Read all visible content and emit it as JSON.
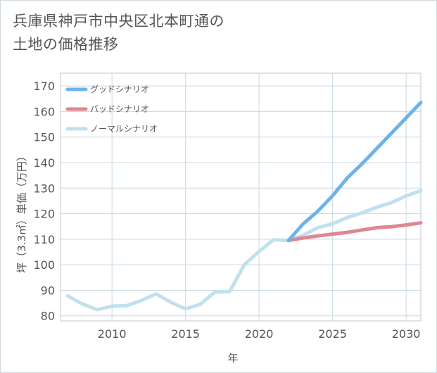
{
  "title": {
    "line1": "兵庫県神戸市中央区北本町通の",
    "line2": "土地の価格推移"
  },
  "chart_data": {
    "type": "line",
    "xlabel": "年",
    "ylabel": "坪（3.3㎡）単価（万円）",
    "xlim": [
      2006.5,
      2031
    ],
    "ylim": [
      78,
      175
    ],
    "x_ticks": [
      2010,
      2015,
      2020,
      2025,
      2030
    ],
    "y_ticks": [
      80,
      90,
      100,
      110,
      120,
      130,
      140,
      150,
      160,
      170
    ],
    "grid": true,
    "legend_position": "top-left",
    "series": [
      {
        "name": "グッドシナリオ",
        "color": "#6cb4e8",
        "width": 5,
        "x": [
          2022,
          2023,
          2024,
          2025,
          2026,
          2027,
          2028,
          2029,
          2030,
          2031
        ],
        "y": [
          109.5,
          116,
          121,
          127,
          134,
          139.5,
          145.5,
          151.5,
          157.5,
          163.5
        ]
      },
      {
        "name": "バッドシナリオ",
        "color": "#e0868e",
        "width": 5,
        "x": [
          2022,
          2023,
          2024,
          2025,
          2026,
          2027,
          2028,
          2029,
          2030,
          2031
        ],
        "y": [
          109.5,
          110.5,
          111.3,
          112,
          112.7,
          113.6,
          114.5,
          114.9,
          115.6,
          116.4
        ]
      },
      {
        "name": "ノーマルシナリオ",
        "color": "#c0e0ee",
        "width": 5,
        "x": [
          2007,
          2008,
          2009,
          2010,
          2011,
          2012,
          2013,
          2014,
          2015,
          2016,
          2017,
          2018,
          2019,
          2020,
          2021,
          2022,
          2023,
          2024,
          2025,
          2026,
          2027,
          2028,
          2029,
          2030,
          2031
        ],
        "y": [
          87.8,
          84.6,
          82.4,
          83.8,
          84,
          86,
          88.6,
          85.3,
          82.7,
          84.5,
          89.3,
          89.5,
          100,
          105.2,
          109.8,
          109.5,
          111.5,
          114.5,
          116,
          118.5,
          120.3,
          122.5,
          124.3,
          126.9,
          129
        ]
      }
    ]
  }
}
